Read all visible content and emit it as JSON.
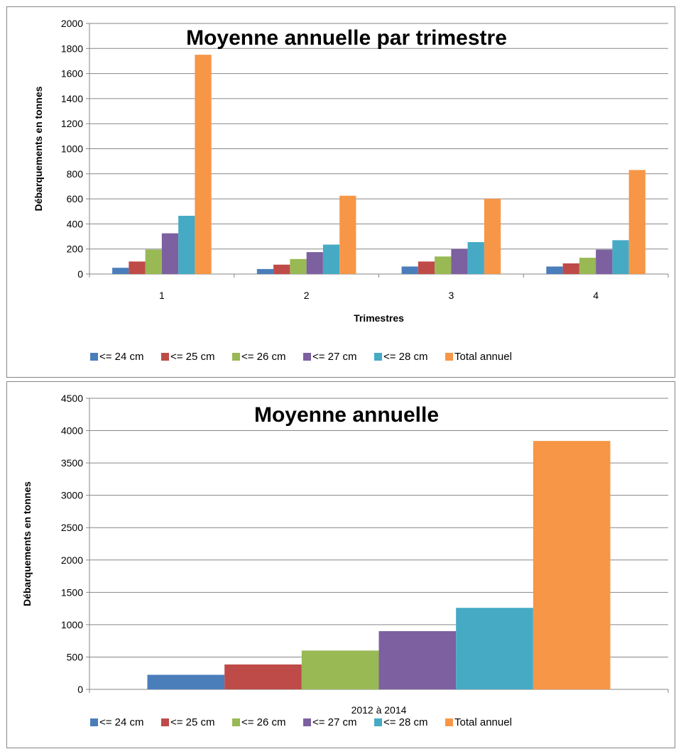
{
  "series_colors": [
    "#4a7ebb",
    "#be4b48",
    "#98b954",
    "#7d60a0",
    "#46aac5",
    "#f79646"
  ],
  "chart_data": [
    {
      "type": "bar",
      "title": "Moyenne annuelle par trimestre",
      "xlabel": "Trimestres",
      "ylabel": "Débarquements en tonnes",
      "ylim": [
        0,
        2000
      ],
      "yticks": [
        "0",
        "200",
        "400",
        "600",
        "800",
        "1000",
        "1200",
        "1400",
        "1600",
        "1800",
        "2000"
      ],
      "categories": [
        "1",
        "2",
        "3",
        "4"
      ],
      "grid": true,
      "legend_position": "bottom",
      "series": [
        {
          "name": "<= 24 cm",
          "values": [
            50,
            40,
            60,
            60
          ]
        },
        {
          "name": "<= 25 cm",
          "values": [
            100,
            75,
            100,
            85
          ]
        },
        {
          "name": "<= 26 cm",
          "values": [
            195,
            120,
            140,
            130
          ]
        },
        {
          "name": "<= 27 cm",
          "values": [
            325,
            175,
            200,
            195
          ]
        },
        {
          "name": "<= 28 cm",
          "values": [
            465,
            235,
            255,
            270
          ]
        },
        {
          "name": "Total annuel",
          "values": [
            1750,
            625,
            600,
            830
          ]
        }
      ]
    },
    {
      "type": "bar",
      "title": "Moyenne annuelle",
      "xlabel": "",
      "ylabel": "Débarquements en tonnes",
      "ylim": [
        0,
        4500
      ],
      "yticks": [
        "0",
        "500",
        "1000",
        "1500",
        "2000",
        "2500",
        "3000",
        "3500",
        "4000",
        "4500"
      ],
      "categories": [
        "2012 à 2014"
      ],
      "grid": true,
      "legend_position": "bottom",
      "series": [
        {
          "name": "<= 24 cm",
          "values": [
            225
          ]
        },
        {
          "name": "<= 25 cm",
          "values": [
            385
          ]
        },
        {
          "name": "<= 26 cm",
          "values": [
            600
          ]
        },
        {
          "name": "<= 27 cm",
          "values": [
            900
          ]
        },
        {
          "name": "<= 28 cm",
          "values": [
            1260
          ]
        },
        {
          "name": "Total annuel",
          "values": [
            3840
          ]
        }
      ]
    }
  ]
}
